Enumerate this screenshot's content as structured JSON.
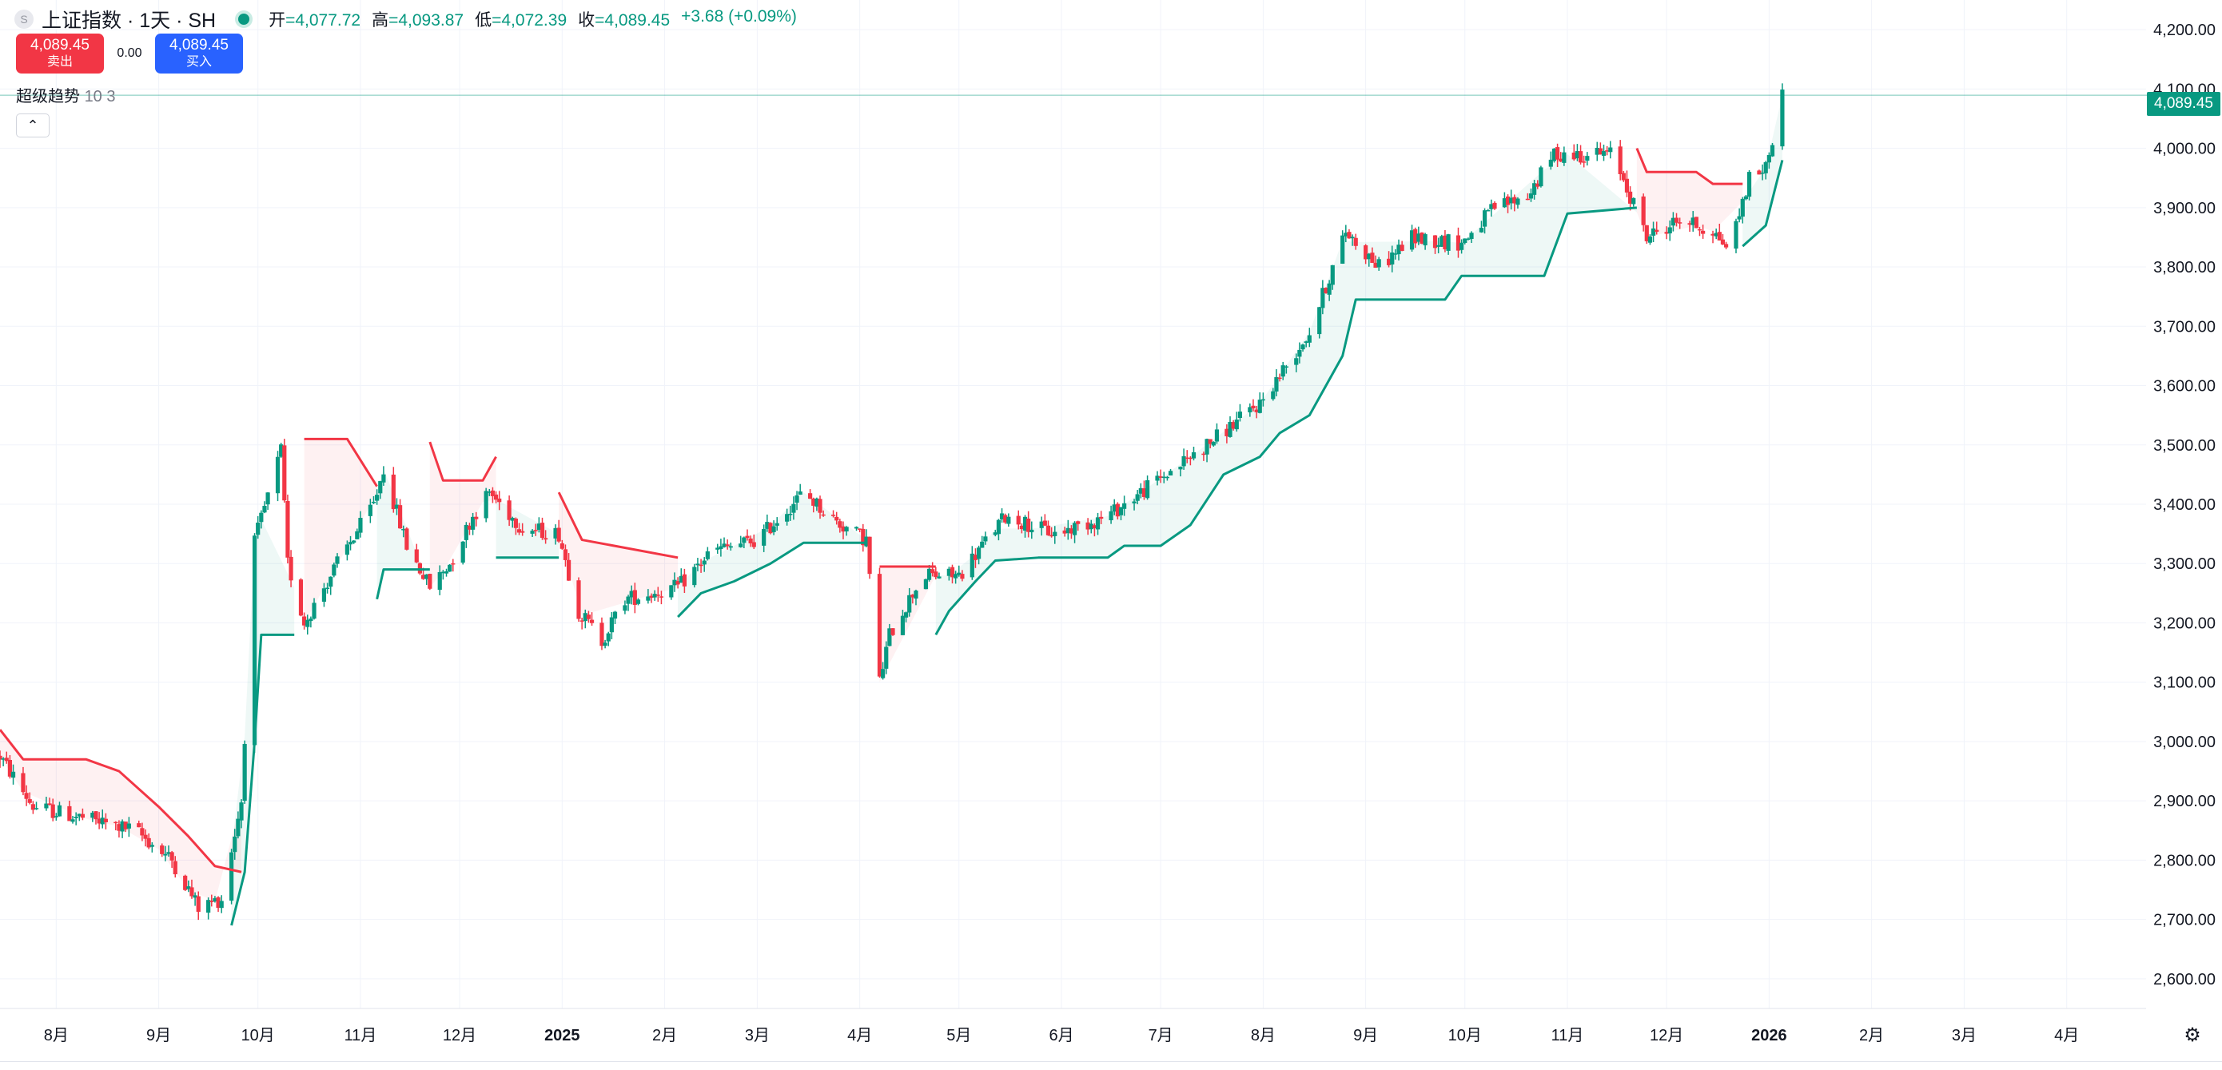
{
  "header": {
    "symbol_title": "上证指数 · 1天 · SH",
    "symbol_icon": "index-logo-icon",
    "ohlc": [
      {
        "key": "开",
        "value": "=4,077.72"
      },
      {
        "key": "高",
        "value": "=4,093.87"
      },
      {
        "key": "低",
        "value": "=4,072.39"
      },
      {
        "key": "收",
        "value": "=4,089.45"
      }
    ],
    "change": "+3.68 (+0.09%)"
  },
  "trade": {
    "sell_price": "4,089.45",
    "sell_label": "卖出",
    "spread": "0.00",
    "buy_price": "4,089.45",
    "buy_label": "买入"
  },
  "indicator": {
    "name": "超级趋势",
    "params": "10 3"
  },
  "collapse_label": "⌃",
  "last_price_label": "4,089.45",
  "colors": {
    "up": "#089981",
    "down": "#f23645",
    "grid": "#f0f3fa",
    "axis_text": "#131722"
  },
  "chart_data": {
    "type": "candlestick",
    "title": "",
    "xlabel": "",
    "ylabel": "",
    "ylim": [
      2550,
      4250
    ],
    "y_ticks": [
      "2,600.00",
      "2,700.00",
      "2,800.00",
      "2,900.00",
      "3,000.00",
      "3,100.00",
      "3,200.00",
      "3,300.00",
      "3,400.00",
      "3,500.00",
      "3,600.00",
      "3,700.00",
      "3,800.00",
      "3,900.00",
      "4,000.00",
      "4,100.00",
      "4,200.00"
    ],
    "x_ticks": [
      {
        "label": "8月",
        "date": "2024-08-01",
        "bold": false
      },
      {
        "label": "9月",
        "date": "2024-09-01",
        "bold": false
      },
      {
        "label": "10月",
        "date": "2024-10-01",
        "bold": false
      },
      {
        "label": "11月",
        "date": "2024-11-01",
        "bold": false
      },
      {
        "label": "12月",
        "date": "2024-12-01",
        "bold": false
      },
      {
        "label": "2025",
        "date": "2025-01-01",
        "bold": true
      },
      {
        "label": "2月",
        "date": "2025-02-01",
        "bold": false
      },
      {
        "label": "3月",
        "date": "2025-03-01",
        "bold": false
      },
      {
        "label": "4月",
        "date": "2025-04-01",
        "bold": false
      },
      {
        "label": "5月",
        "date": "2025-05-01",
        "bold": false
      },
      {
        "label": "6月",
        "date": "2025-06-01",
        "bold": false
      },
      {
        "label": "7月",
        "date": "2025-07-01",
        "bold": false
      },
      {
        "label": "8月",
        "date": "2025-08-01",
        "bold": false
      },
      {
        "label": "9月",
        "date": "2025-09-01",
        "bold": false
      },
      {
        "label": "10月",
        "date": "2025-10-01",
        "bold": false
      },
      {
        "label": "11月",
        "date": "2025-11-01",
        "bold": false
      },
      {
        "label": "12月",
        "date": "2025-12-01",
        "bold": false
      },
      {
        "label": "2026",
        "date": "2026-01-01",
        "bold": true
      },
      {
        "label": "2月",
        "date": "2026-02-01",
        "bold": false
      },
      {
        "label": "3月",
        "date": "2026-03-01",
        "bold": false
      },
      {
        "label": "4月",
        "date": "2026-04-01",
        "bold": false
      }
    ],
    "x_range": [
      "2024-07-15",
      "2026-04-25"
    ],
    "last_price": 4089.45,
    "close_path": [
      [
        "2024-07-15",
        2975
      ],
      [
        "2024-07-25",
        2890
      ],
      [
        "2024-08-10",
        2870
      ],
      [
        "2024-08-25",
        2850
      ],
      [
        "2024-09-05",
        2800
      ],
      [
        "2024-09-13",
        2720
      ],
      [
        "2024-09-20",
        2735
      ],
      [
        "2024-09-26",
        2900
      ],
      [
        "2024-09-30",
        3336
      ],
      [
        "2024-10-08",
        3490
      ],
      [
        "2024-10-10",
        3300
      ],
      [
        "2024-10-15",
        3200
      ],
      [
        "2024-10-25",
        3300
      ],
      [
        "2024-11-05",
        3400
      ],
      [
        "2024-11-08",
        3460
      ],
      [
        "2024-11-15",
        3330
      ],
      [
        "2024-11-22",
        3260
      ],
      [
        "2024-11-28",
        3300
      ],
      [
        "2024-12-05",
        3380
      ],
      [
        "2024-12-10",
        3420
      ],
      [
        "2024-12-20",
        3360
      ],
      [
        "2024-12-31",
        3350
      ],
      [
        "2025-01-06",
        3220
      ],
      [
        "2025-01-13",
        3170
      ],
      [
        "2025-01-20",
        3240
      ],
      [
        "2025-02-05",
        3260
      ],
      [
        "2025-02-15",
        3320
      ],
      [
        "2025-03-01",
        3340
      ],
      [
        "2025-03-15",
        3420
      ],
      [
        "2025-03-25",
        3370
      ],
      [
        "2025-04-03",
        3340
      ],
      [
        "2025-04-07",
        3100
      ],
      [
        "2025-04-10",
        3180
      ],
      [
        "2025-04-20",
        3280
      ],
      [
        "2025-05-01",
        3280
      ],
      [
        "2025-05-15",
        3380
      ],
      [
        "2025-05-30",
        3350
      ],
      [
        "2025-06-15",
        3380
      ],
      [
        "2025-06-30",
        3440
      ],
      [
        "2025-07-15",
        3500
      ],
      [
        "2025-07-31",
        3570
      ],
      [
        "2025-08-15",
        3690
      ],
      [
        "2025-08-26",
        3860
      ],
      [
        "2025-09-05",
        3800
      ],
      [
        "2025-09-15",
        3850
      ],
      [
        "2025-09-30",
        3840
      ],
      [
        "2025-10-10",
        3900
      ],
      [
        "2025-10-20",
        3920
      ],
      [
        "2025-10-28",
        3990
      ],
      [
        "2025-11-05",
        3990
      ],
      [
        "2025-11-15",
        3990
      ],
      [
        "2025-11-25",
        3850
      ],
      [
        "2025-12-05",
        3880
      ],
      [
        "2025-12-15",
        3860
      ],
      [
        "2025-12-20",
        3830
      ],
      [
        "2025-12-26",
        3950
      ],
      [
        "2025-12-31",
        3968
      ],
      [
        "2026-01-05",
        4089.45
      ]
    ],
    "supertrend": {
      "name": "超级趋势",
      "length": 10,
      "factor": 3,
      "segments": [
        {
          "trend": "down",
          "points": [
            [
              "2024-07-15",
              3020
            ],
            [
              "2024-07-22",
              2970
            ],
            [
              "2024-08-10",
              2970
            ],
            [
              "2024-08-20",
              2950
            ],
            [
              "2024-09-01",
              2890
            ],
            [
              "2024-09-10",
              2840
            ],
            [
              "2024-09-18",
              2790
            ],
            [
              "2024-09-26",
              2780
            ]
          ]
        },
        {
          "trend": "up",
          "points": [
            [
              "2024-09-23",
              2690
            ],
            [
              "2024-09-27",
              2780
            ],
            [
              "2024-09-30",
              3000
            ],
            [
              "2024-10-02",
              3180
            ],
            [
              "2024-10-12",
              3180
            ]
          ]
        },
        {
          "trend": "down",
          "points": [
            [
              "2024-10-15",
              3510
            ],
            [
              "2024-10-28",
              3510
            ],
            [
              "2024-11-06",
              3430
            ]
          ]
        },
        {
          "trend": "up",
          "points": [
            [
              "2024-11-06",
              3240
            ],
            [
              "2024-11-08",
              3290
            ],
            [
              "2024-11-22",
              3290
            ]
          ]
        },
        {
          "trend": "down",
          "points": [
            [
              "2024-11-22",
              3505
            ],
            [
              "2024-11-26",
              3440
            ],
            [
              "2024-12-08",
              3440
            ],
            [
              "2024-12-12",
              3480
            ]
          ]
        },
        {
          "trend": "up",
          "points": [
            [
              "2024-12-12",
              3310
            ],
            [
              "2024-12-31",
              3310
            ]
          ]
        },
        {
          "trend": "down",
          "points": [
            [
              "2024-12-31",
              3420
            ],
            [
              "2025-01-07",
              3340
            ],
            [
              "2025-02-05",
              3310
            ]
          ]
        },
        {
          "trend": "up",
          "points": [
            [
              "2025-02-05",
              3210
            ],
            [
              "2025-02-12",
              3250
            ],
            [
              "2025-02-22",
              3270
            ],
            [
              "2025-03-05",
              3300
            ],
            [
              "2025-03-15",
              3335
            ],
            [
              "2025-04-03",
              3335
            ]
          ]
        },
        {
          "trend": "down",
          "points": [
            [
              "2025-04-07",
              3295
            ],
            [
              "2025-04-24",
              3295
            ]
          ]
        },
        {
          "trend": "up",
          "points": [
            [
              "2025-04-24",
              3180
            ],
            [
              "2025-04-28",
              3220
            ],
            [
              "2025-05-06",
              3270
            ],
            [
              "2025-05-12",
              3305
            ],
            [
              "2025-05-25",
              3310
            ],
            [
              "2025-06-15",
              3310
            ],
            [
              "2025-06-20",
              3330
            ],
            [
              "2025-07-01",
              3330
            ],
            [
              "2025-07-10",
              3365
            ],
            [
              "2025-07-20",
              3450
            ],
            [
              "2025-07-31",
              3480
            ],
            [
              "2025-08-06",
              3520
            ],
            [
              "2025-08-15",
              3550
            ],
            [
              "2025-08-25",
              3650
            ],
            [
              "2025-08-29",
              3745
            ],
            [
              "2025-09-25",
              3745
            ],
            [
              "2025-09-30",
              3785
            ],
            [
              "2025-10-25",
              3785
            ],
            [
              "2025-11-01",
              3890
            ],
            [
              "2025-11-22",
              3900
            ]
          ]
        },
        {
          "trend": "down",
          "points": [
            [
              "2025-11-22",
              4000
            ],
            [
              "2025-11-25",
              3960
            ],
            [
              "2025-12-10",
              3960
            ],
            [
              "2025-12-15",
              3940
            ],
            [
              "2025-12-24",
              3940
            ]
          ]
        },
        {
          "trend": "up",
          "points": [
            [
              "2025-12-24",
              3835
            ],
            [
              "2025-12-31",
              3870
            ],
            [
              "2026-01-05",
              3980
            ]
          ]
        }
      ]
    }
  }
}
